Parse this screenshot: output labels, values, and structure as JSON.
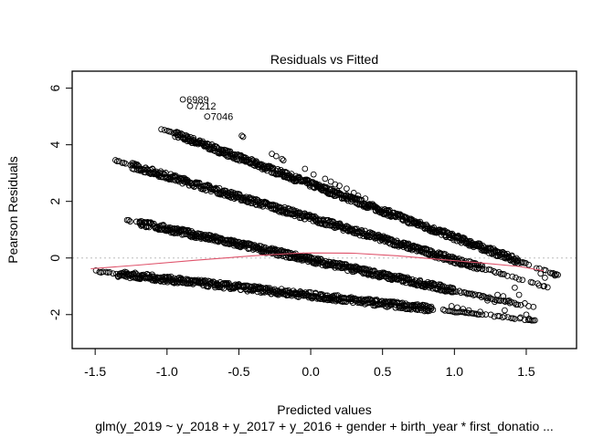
{
  "chart_data": {
    "type": "scatter",
    "title": "Residuals vs Fitted",
    "xlabel": "Predicted values",
    "sublabel": "glm(y_2019 ~ y_2018 + y_2017 + y_2016 + gender + birth_year * first_donatio ...",
    "ylabel": "Pearson Residuals",
    "xlim": [
      -1.66,
      1.85
    ],
    "ylim": [
      -3.2,
      6.6
    ],
    "xticks": [
      {
        "value": -1.5,
        "label": "-1.5"
      },
      {
        "value": -1.0,
        "label": "-1.0"
      },
      {
        "value": -0.5,
        "label": "-0.5"
      },
      {
        "value": 0.0,
        "label": "0.0"
      },
      {
        "value": 0.5,
        "label": "0.5"
      },
      {
        "value": 1.0,
        "label": "1.0"
      },
      {
        "value": 1.5,
        "label": "1.5"
      }
    ],
    "yticks": [
      {
        "value": -2,
        "label": "-2"
      },
      {
        "value": 0,
        "label": "0"
      },
      {
        "value": 2,
        "label": "2"
      },
      {
        "value": 4,
        "label": "4"
      },
      {
        "value": 6,
        "label": "6"
      }
    ],
    "reference_line": {
      "y": 0,
      "style": "dotted",
      "color": "#BEBEBE"
    },
    "bands": [
      {
        "name": "band-1",
        "x_start": -1.05,
        "y_start": 4.58,
        "x_end": 1.72,
        "y_end": -0.62,
        "dense_from": -0.95,
        "dense_to": 1.45
      },
      {
        "name": "band-2",
        "x_start": -1.37,
        "y_start": 3.45,
        "x_end": 1.66,
        "y_end": -1.05,
        "dense_from": -1.25,
        "dense_to": 1.2
      },
      {
        "name": "band-3",
        "x_start": -1.3,
        "y_start": 1.36,
        "x_end": 1.55,
        "y_end": -1.75,
        "dense_from": -1.2,
        "dense_to": 1.0
      },
      {
        "name": "band-4",
        "x_start": -1.53,
        "y_start": -0.45,
        "x_end": 1.55,
        "y_end": -2.2,
        "dense_from": -1.35,
        "dense_to": 0.85
      }
    ],
    "sparse_points": [
      [
        -0.48,
        4.32
      ],
      [
        -0.47,
        4.28
      ],
      [
        -0.27,
        3.68
      ],
      [
        -0.24,
        3.6
      ],
      [
        -0.2,
        3.5
      ],
      [
        -0.19,
        3.45
      ],
      [
        -0.04,
        3.15
      ],
      [
        0.02,
        2.95
      ],
      [
        0.1,
        2.8
      ],
      [
        0.14,
        2.7
      ],
      [
        0.17,
        2.6
      ],
      [
        0.2,
        2.55
      ],
      [
        0.25,
        2.45
      ],
      [
        0.3,
        2.3
      ],
      [
        0.33,
        2.2
      ],
      [
        0.38,
        2.1
      ],
      [
        1.23,
        -1.5
      ],
      [
        1.28,
        -1.55
      ],
      [
        1.35,
        -1.85
      ],
      [
        1.18,
        -1.9
      ],
      [
        1.12,
        -1.95
      ],
      [
        1.42,
        -1.05
      ],
      [
        1.45,
        -1.3
      ],
      [
        1.49,
        -1.6
      ],
      [
        1.5,
        -2.0
      ],
      [
        1.46,
        -2.1
      ],
      [
        1.52,
        -2.15
      ],
      [
        1.56,
        -2.2
      ],
      [
        1.6,
        -0.55
      ],
      [
        1.63,
        -0.7
      ],
      [
        1.7,
        -0.62
      ],
      [
        1.58,
        -0.9
      ],
      [
        1.62,
        -1.0
      ],
      [
        1.3,
        -1.3
      ],
      [
        1.34,
        -1.35
      ],
      [
        1.38,
        -1.5
      ],
      [
        0.98,
        -1.7
      ],
      [
        1.02,
        -1.75
      ],
      [
        1.06,
        -1.8
      ],
      [
        1.1,
        -1.85
      ]
    ],
    "labeled_points": [
      {
        "id": "6989",
        "x": -0.89,
        "y": 5.6
      },
      {
        "id": "7212",
        "x": -0.84,
        "y": 5.37
      },
      {
        "id": "7046",
        "x": -0.72,
        "y": 5.0
      }
    ],
    "smoother": {
      "color": "#DF536B",
      "points": [
        [
          -1.53,
          -0.38
        ],
        [
          -1.2,
          -0.25
        ],
        [
          -0.8,
          -0.08
        ],
        [
          -0.4,
          0.08
        ],
        [
          -0.1,
          0.17
        ],
        [
          0.0,
          0.18
        ],
        [
          0.3,
          0.17
        ],
        [
          0.6,
          0.08
        ],
        [
          0.9,
          -0.05
        ],
        [
          1.2,
          -0.18
        ],
        [
          1.45,
          -0.3
        ],
        [
          1.62,
          -0.45
        ]
      ]
    }
  }
}
